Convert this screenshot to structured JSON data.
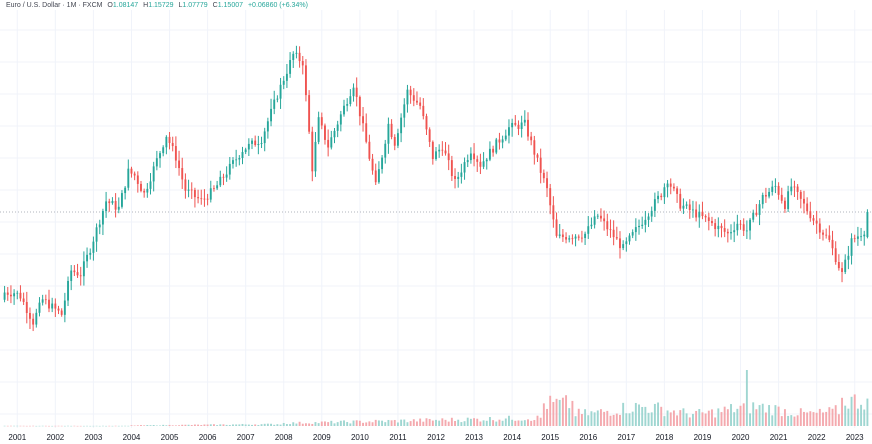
{
  "legend": {
    "symbol": "Euro / U.S. Dollar · 1M · FXCM",
    "o_label": "O",
    "o_value": "1.08147",
    "h_label": "H",
    "h_value": "1.15729",
    "l_label": "L",
    "l_value": "1.07779",
    "c_label": "C",
    "c_value": "1.15007",
    "change": "+0.06860 (+6.34%)"
  },
  "colors": {
    "up": "#26a69a",
    "down": "#ef5350",
    "vol_up": "#9fd6d1",
    "vol_down": "#f4a9ae",
    "grid": "#f0f3fa",
    "ref_line": "#b2b5be"
  },
  "chart_data": {
    "type": "candlestick",
    "interval": "1M",
    "x_range": [
      "2000-09",
      "2023-05"
    ],
    "y_range": [
      0.8,
      1.62
    ],
    "reference_price": 1.15,
    "volume_range": [
      0,
      100
    ],
    "x_tick_labels": [
      "2001",
      "2002",
      "2003",
      "2004",
      "2005",
      "2006",
      "2007",
      "2008",
      "2009",
      "2010",
      "2011",
      "2012",
      "2013",
      "2014",
      "2015",
      "2016",
      "2017",
      "2018",
      "2019",
      "2020",
      "2021",
      "2022",
      "2023"
    ],
    "anchors": [
      [
        "2000-12",
        0.93
      ],
      [
        "2001-02",
        0.92
      ],
      [
        "2001-06",
        0.85
      ],
      [
        "2001-09",
        0.91
      ],
      [
        "2001-12",
        0.89
      ],
      [
        "2002-03",
        0.87
      ],
      [
        "2002-06",
        0.99
      ],
      [
        "2002-09",
        0.98
      ],
      [
        "2002-12",
        1.05
      ],
      [
        "2003-05",
        1.18
      ],
      [
        "2003-09",
        1.16
      ],
      [
        "2003-12",
        1.26
      ],
      [
        "2004-02",
        1.25
      ],
      [
        "2004-05",
        1.2
      ],
      [
        "2004-12",
        1.36
      ],
      [
        "2005-03",
        1.3
      ],
      [
        "2005-06",
        1.21
      ],
      [
        "2005-11",
        1.18
      ],
      [
        "2006-03",
        1.21
      ],
      [
        "2006-12",
        1.32
      ],
      [
        "2007-06",
        1.35
      ],
      [
        "2007-11",
        1.47
      ],
      [
        "2008-04",
        1.58
      ],
      [
        "2008-07",
        1.56
      ],
      [
        "2008-10",
        1.27
      ],
      [
        "2008-12",
        1.4
      ],
      [
        "2009-03",
        1.33
      ],
      [
        "2009-11",
        1.5
      ],
      [
        "2010-06",
        1.22
      ],
      [
        "2010-10",
        1.39
      ],
      [
        "2010-12",
        1.34
      ],
      [
        "2011-04",
        1.48
      ],
      [
        "2011-08",
        1.44
      ],
      [
        "2011-12",
        1.3
      ],
      [
        "2012-03",
        1.33
      ],
      [
        "2012-07",
        1.23
      ],
      [
        "2012-12",
        1.32
      ],
      [
        "2013-03",
        1.28
      ],
      [
        "2013-12",
        1.38
      ],
      [
        "2014-05",
        1.39
      ],
      [
        "2014-12",
        1.21
      ],
      [
        "2015-03",
        1.08
      ],
      [
        "2015-12",
        1.09
      ],
      [
        "2016-04",
        1.14
      ],
      [
        "2016-12",
        1.05
      ],
      [
        "2017-12",
        1.2
      ],
      [
        "2018-02",
        1.24
      ],
      [
        "2018-06",
        1.17
      ],
      [
        "2018-12",
        1.14
      ],
      [
        "2019-09",
        1.09
      ],
      [
        "2019-12",
        1.12
      ],
      [
        "2020-03",
        1.1
      ],
      [
        "2020-08",
        1.19
      ],
      [
        "2020-12",
        1.22
      ],
      [
        "2021-03",
        1.17
      ],
      [
        "2021-05",
        1.22
      ],
      [
        "2021-12",
        1.13
      ],
      [
        "2022-05",
        1.07
      ],
      [
        "2022-09",
        0.98
      ],
      [
        "2022-12",
        1.07
      ],
      [
        "2023-04",
        1.1
      ],
      [
        "2023-05",
        1.15
      ]
    ],
    "last_candle": {
      "open": 1.08147,
      "high": 1.15729,
      "low": 1.07779,
      "close": 1.15007
    }
  }
}
